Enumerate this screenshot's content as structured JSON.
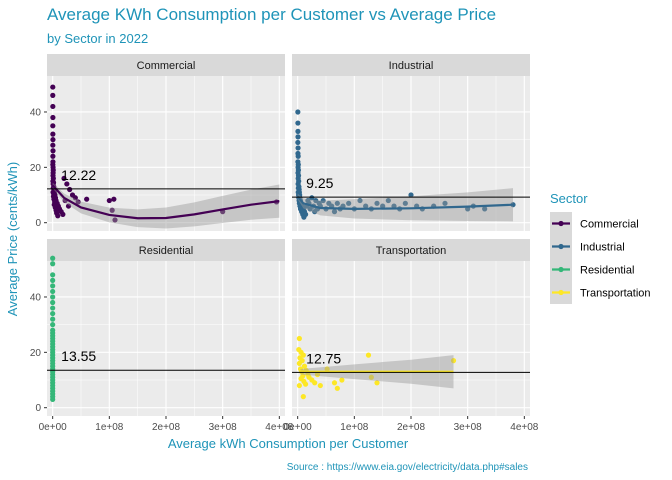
{
  "chart_data": {
    "type": "scatter",
    "title": "Average KWh Consumption per Customer vs Average Price",
    "subtitle": "by Sector in 2022",
    "xlabel": "Average kWh Consumption per Customer",
    "ylabel": "Average Price (cents/kWh)",
    "caption": "Source : https://www.eia.gov/electricity/data.php#sales",
    "xlim": [
      -10000000,
      410000000
    ],
    "ylim": [
      -3,
      53
    ],
    "x_ticks": [
      0,
      100000000,
      200000000,
      300000000,
      400000000
    ],
    "x_tick_labels": [
      "0e+00",
      "1e+08",
      "2e+08",
      "3e+08",
      "4e+08"
    ],
    "y_ticks": [
      0,
      20,
      40
    ],
    "y_tick_labels": [
      "0",
      "20",
      "40"
    ],
    "legend": {
      "title": "Sector",
      "position": "right"
    },
    "facets": [
      {
        "name": "Commercial",
        "color": "#440154",
        "mean_price": 12.22,
        "mean_label": "12.22",
        "smooth_curve": [
          [
            0,
            13.5
          ],
          [
            20000000,
            9.0
          ],
          [
            50000000,
            5.5
          ],
          [
            100000000,
            2.8
          ],
          [
            150000000,
            1.6
          ],
          [
            200000000,
            1.7
          ],
          [
            250000000,
            3.0
          ],
          [
            300000000,
            4.8
          ],
          [
            350000000,
            6.5
          ],
          [
            400000000,
            7.8
          ]
        ],
        "points": [
          [
            200000,
            49
          ],
          [
            200000,
            46
          ],
          [
            300000,
            42
          ],
          [
            400000,
            38
          ],
          [
            250000,
            35
          ],
          [
            350000,
            32
          ],
          [
            500000,
            30
          ],
          [
            300000,
            28
          ],
          [
            600000,
            26
          ],
          [
            400000,
            24
          ],
          [
            500000,
            22
          ],
          [
            300000,
            21
          ],
          [
            700000,
            20
          ],
          [
            1000000,
            19
          ],
          [
            800000,
            18
          ],
          [
            600000,
            17
          ],
          [
            1200000,
            16
          ],
          [
            500000,
            15
          ],
          [
            1500000,
            14.5
          ],
          [
            900000,
            14
          ],
          [
            2000000,
            13
          ],
          [
            1100000,
            12.5
          ],
          [
            2500000,
            12
          ],
          [
            700000,
            11
          ],
          [
            3000000,
            11
          ],
          [
            1800000,
            10.5
          ],
          [
            4000000,
            10
          ],
          [
            1400000,
            9.5
          ],
          [
            5000000,
            9
          ],
          [
            2200000,
            8.5
          ],
          [
            6000000,
            8
          ],
          [
            3500000,
            7.5
          ],
          [
            8000000,
            7
          ],
          [
            2800000,
            6.5
          ],
          [
            10000000,
            6
          ],
          [
            4500000,
            5.5
          ],
          [
            12000000,
            5
          ],
          [
            6000000,
            4.5
          ],
          [
            15000000,
            4
          ],
          [
            7000000,
            3.5
          ],
          [
            18000000,
            3
          ],
          [
            9000000,
            2.5
          ],
          [
            20000000,
            16
          ],
          [
            25000000,
            14
          ],
          [
            30000000,
            12
          ],
          [
            35000000,
            10
          ],
          [
            22000000,
            8
          ],
          [
            28000000,
            6
          ],
          [
            40000000,
            9
          ],
          [
            45000000,
            7.5
          ],
          [
            60000000,
            8.5
          ],
          [
            100000000,
            8
          ],
          [
            108000000,
            8.5
          ],
          [
            105000000,
            4.5
          ],
          [
            110000000,
            1
          ],
          [
            300000000,
            4
          ],
          [
            395000000,
            7.5
          ]
        ]
      },
      {
        "name": "Industrial",
        "color": "#31688e",
        "mean_price": 9.25,
        "mean_label": "9.25",
        "smooth_curve": [
          [
            0,
            9.5
          ],
          [
            10000000,
            7.0
          ],
          [
            40000000,
            5.3
          ],
          [
            100000000,
            5.0
          ],
          [
            200000000,
            5.2
          ],
          [
            300000000,
            5.8
          ],
          [
            380000000,
            6.5
          ]
        ],
        "points": [
          [
            300000,
            40
          ],
          [
            400000,
            36
          ],
          [
            500000,
            33
          ],
          [
            600000,
            31
          ],
          [
            300000,
            29
          ],
          [
            700000,
            27
          ],
          [
            500000,
            25
          ],
          [
            900000,
            24
          ],
          [
            400000,
            22
          ],
          [
            1100000,
            21
          ],
          [
            700000,
            20
          ],
          [
            1300000,
            19
          ],
          [
            600000,
            18
          ],
          [
            1500000,
            17
          ],
          [
            900000,
            16
          ],
          [
            1800000,
            15
          ],
          [
            800000,
            14
          ],
          [
            2200000,
            13
          ],
          [
            1200000,
            12.5
          ],
          [
            2600000,
            12
          ],
          [
            1000000,
            11
          ],
          [
            3000000,
            11
          ],
          [
            1600000,
            10
          ],
          [
            3500000,
            10
          ],
          [
            2000000,
            9
          ],
          [
            4000000,
            9
          ],
          [
            2500000,
            8
          ],
          [
            5000000,
            8
          ],
          [
            3000000,
            7
          ],
          [
            6000000,
            7
          ],
          [
            4000000,
            6
          ],
          [
            8000000,
            6
          ],
          [
            5000000,
            5
          ],
          [
            10000000,
            5
          ],
          [
            7000000,
            4
          ],
          [
            12000000,
            4
          ],
          [
            9000000,
            3
          ],
          [
            14000000,
            3
          ],
          [
            11000000,
            2
          ],
          [
            16000000,
            6
          ],
          [
            18000000,
            8
          ],
          [
            20000000,
            7
          ],
          [
            22000000,
            5
          ],
          [
            25000000,
            9
          ],
          [
            28000000,
            6
          ],
          [
            30000000,
            4
          ],
          [
            32000000,
            8
          ],
          [
            35000000,
            5
          ],
          [
            38000000,
            7
          ],
          [
            40000000,
            6
          ],
          [
            45000000,
            8
          ],
          [
            50000000,
            5
          ],
          [
            55000000,
            7
          ],
          [
            60000000,
            6
          ],
          [
            65000000,
            4
          ],
          [
            70000000,
            7
          ],
          [
            75000000,
            5
          ],
          [
            80000000,
            6
          ],
          [
            90000000,
            7
          ],
          [
            100000000,
            5
          ],
          [
            110000000,
            8
          ],
          [
            120000000,
            6
          ],
          [
            130000000,
            5
          ],
          [
            140000000,
            7
          ],
          [
            150000000,
            6
          ],
          [
            160000000,
            8
          ],
          [
            170000000,
            6
          ],
          [
            180000000,
            5
          ],
          [
            190000000,
            7
          ],
          [
            200000000,
            10
          ],
          [
            210000000,
            6
          ],
          [
            220000000,
            5
          ],
          [
            240000000,
            6
          ],
          [
            260000000,
            7
          ],
          [
            300000000,
            5
          ],
          [
            310000000,
            6
          ],
          [
            330000000,
            5
          ],
          [
            380000000,
            6.5
          ]
        ]
      },
      {
        "name": "Residential",
        "color": "#35b779",
        "mean_price": 13.55,
        "mean_label": "13.55",
        "smooth_curve": [],
        "points": [
          [
            0,
            54
          ],
          [
            0,
            52
          ],
          [
            0,
            48
          ],
          [
            0,
            46
          ],
          [
            0,
            44
          ],
          [
            0,
            42
          ],
          [
            0,
            40
          ],
          [
            0,
            38
          ],
          [
            0,
            36
          ],
          [
            0,
            34
          ],
          [
            0,
            32
          ],
          [
            0,
            30
          ],
          [
            0,
            28
          ],
          [
            0,
            27
          ],
          [
            0,
            26
          ],
          [
            0,
            25
          ],
          [
            0,
            24
          ],
          [
            0,
            23
          ],
          [
            0,
            22
          ],
          [
            0,
            21
          ],
          [
            0,
            20
          ],
          [
            0,
            19
          ],
          [
            0,
            18
          ],
          [
            0,
            17
          ],
          [
            0,
            16
          ],
          [
            0,
            15
          ],
          [
            0,
            14
          ],
          [
            0,
            13
          ],
          [
            0,
            12
          ],
          [
            0,
            11
          ],
          [
            0,
            10
          ],
          [
            0,
            9
          ],
          [
            0,
            8
          ],
          [
            0,
            7
          ],
          [
            0,
            6
          ],
          [
            0,
            5
          ],
          [
            0,
            4
          ],
          [
            0,
            3
          ]
        ]
      },
      {
        "name": "Transportation",
        "color": "#fde725",
        "mean_price": 12.75,
        "mean_label": "12.75",
        "smooth_curve": [
          [
            5000000,
            13.0
          ],
          [
            100000000,
            13.0
          ],
          [
            200000000,
            13.0
          ],
          [
            275000000,
            13.0
          ]
        ],
        "points": [
          [
            3000000,
            25
          ],
          [
            2000000,
            21
          ],
          [
            6000000,
            20
          ],
          [
            10000000,
            19
          ],
          [
            4000000,
            18
          ],
          [
            8000000,
            17
          ],
          [
            3000000,
            16
          ],
          [
            12000000,
            15
          ],
          [
            5000000,
            14
          ],
          [
            15000000,
            13.5
          ],
          [
            7000000,
            13
          ],
          [
            18000000,
            12
          ],
          [
            9000000,
            11.5
          ],
          [
            20000000,
            11
          ],
          [
            6000000,
            10.5
          ],
          [
            25000000,
            10
          ],
          [
            11000000,
            9.5
          ],
          [
            30000000,
            9
          ],
          [
            14000000,
            8.5
          ],
          [
            3000000,
            8
          ],
          [
            35000000,
            12
          ],
          [
            40000000,
            8
          ],
          [
            10000000,
            4
          ],
          [
            52000000,
            14
          ],
          [
            65000000,
            9
          ],
          [
            70000000,
            7
          ],
          [
            78000000,
            10
          ],
          [
            125000000,
            19
          ],
          [
            130000000,
            11
          ],
          [
            140000000,
            9
          ],
          [
            275000000,
            17
          ]
        ]
      }
    ]
  }
}
